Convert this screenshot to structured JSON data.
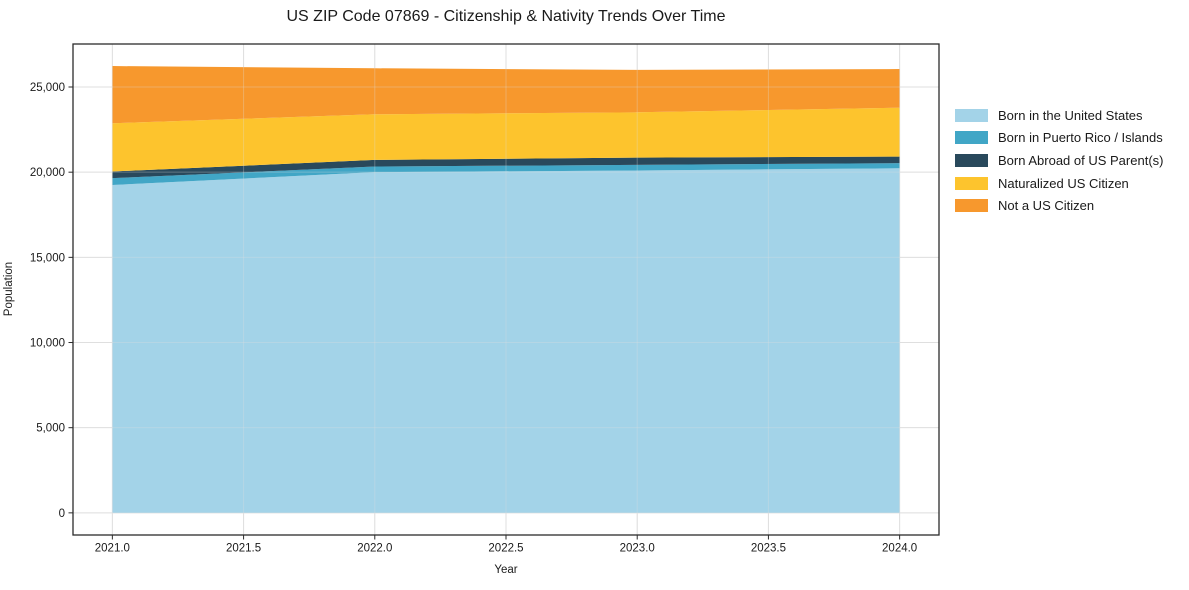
{
  "figure": {
    "background": "#ffffff",
    "axes_edge_color": "#2b2b2b",
    "grid_color": "#dfdfdf"
  },
  "chart_data": {
    "type": "area",
    "stacked": true,
    "title": "US ZIP Code 07869 - Citizenship & Nativity Trends Over Time",
    "xlabel": "Year",
    "ylabel": "Population",
    "x": [
      2021,
      2022,
      2023,
      2024
    ],
    "series": [
      {
        "name": "Born in the United States",
        "color": "#A3D3E8",
        "values": [
          19250,
          20000,
          20100,
          20230
        ]
      },
      {
        "name": "Born in Puerto Rico / Islands",
        "color": "#41A6C6",
        "values": [
          400,
          330,
          330,
          300
        ]
      },
      {
        "name": "Born Abroad of US Parent(s)",
        "color": "#29495C",
        "values": [
          390,
          390,
          425,
          385
        ]
      },
      {
        "name": "Naturalized US Citizen",
        "color": "#FDC42D",
        "values": [
          2830,
          2680,
          2660,
          2870
        ]
      },
      {
        "name": "Not a US Citizen",
        "color": "#F7982D",
        "values": [
          3360,
          2700,
          2490,
          2270
        ]
      }
    ],
    "totals": [
      26230,
      26100,
      26005,
      26055
    ],
    "xlim": [
      2020.85,
      2024.15
    ],
    "ylim": [
      -1300,
      27525
    ],
    "xticks": {
      "values": [
        2021.0,
        2021.5,
        2022.0,
        2022.5,
        2023.0,
        2023.5,
        2024.0
      ],
      "labels": [
        "2021.0",
        "2021.5",
        "2022.0",
        "2022.5",
        "2023.0",
        "2023.5",
        "2024.0"
      ]
    },
    "yticks": {
      "values": [
        0,
        5000,
        10000,
        15000,
        20000,
        25000
      ],
      "labels": [
        "0",
        "5,000",
        "10,000",
        "15,000",
        "20,000",
        "25,000"
      ]
    },
    "grid": true,
    "legend_position": "right"
  }
}
